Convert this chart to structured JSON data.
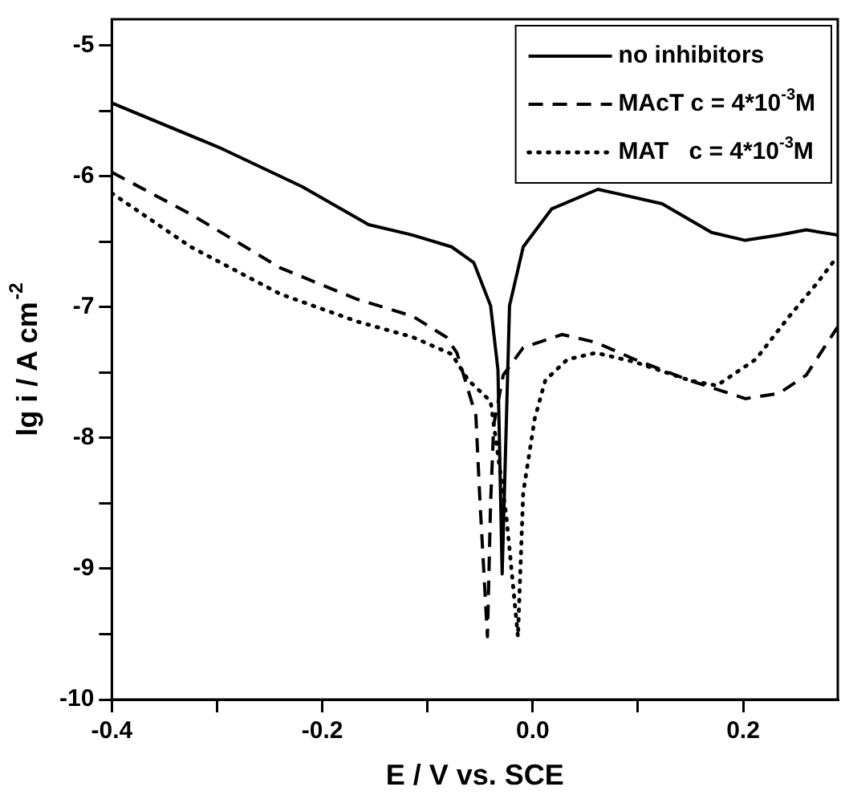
{
  "chart_data": {
    "type": "line",
    "xlabel": "E / V vs. SCE",
    "ylabel": "lg i / A cm$^{-2}$",
    "xlim": [
      -0.4,
      0.29
    ],
    "ylim": [
      -10,
      -4.8
    ],
    "xticks": [
      -0.4,
      {
        "value": -0.3,
        "label": null
      },
      -0.2,
      {
        "value": -0.1,
        "label": null
      },
      {
        "value": 0,
        "label": "0.0"
      },
      {
        "value": 0.1,
        "label": null
      },
      0.2
    ],
    "yticks": [
      -10,
      {
        "value": -9.5,
        "label": null
      },
      -9,
      {
        "value": -8.5,
        "label": null
      },
      -8,
      {
        "value": -7.5,
        "label": null
      },
      -7,
      {
        "value": -6.5,
        "label": null
      },
      -6,
      {
        "value": -5.5,
        "label": null
      },
      -5
    ],
    "grid": false,
    "legend": "top right",
    "series": [
      {
        "name": "no inhibitors",
        "color": "#000000",
        "line_style": "solid",
        "x": [
          -0.4,
          -0.298,
          -0.219,
          -0.156,
          -0.114,
          -0.077,
          -0.056,
          -0.04,
          -0.033,
          -0.029,
          -0.022,
          -0.009,
          0.018,
          0.062,
          0.123,
          0.17,
          0.202,
          0.234,
          0.26,
          0.29
        ],
        "values": [
          -5.44,
          -5.78,
          -6.08,
          -6.37,
          -6.45,
          -6.54,
          -6.66,
          -6.99,
          -7.48,
          -9.04,
          -6.99,
          -6.54,
          -6.25,
          -6.1,
          -6.21,
          -6.43,
          -6.49,
          -6.45,
          -6.41,
          -6.45
        ]
      },
      {
        "name": "MAcT c = 4*10$^{-3}$M",
        "color": "#000000",
        "line_style": "dashed",
        "x": [
          -0.4,
          -0.325,
          -0.24,
          -0.167,
          -0.114,
          -0.082,
          -0.072,
          -0.054,
          -0.05,
          -0.043,
          -0.04,
          -0.037,
          -0.028,
          -0.009,
          0.028,
          0.06,
          0.097,
          0.149,
          0.202,
          0.234,
          0.26,
          0.29
        ],
        "values": [
          -5.97,
          -6.29,
          -6.7,
          -6.94,
          -7.07,
          -7.23,
          -7.35,
          -7.83,
          -8.5,
          -9.52,
          -8.5,
          -7.9,
          -7.52,
          -7.31,
          -7.21,
          -7.27,
          -7.4,
          -7.56,
          -7.7,
          -7.66,
          -7.52,
          -7.15
        ]
      },
      {
        "name": "MAT   c = 4*10$^{-3}$M",
        "color": "#000000",
        "line_style": "dotted",
        "x": [
          -0.4,
          -0.325,
          -0.24,
          -0.167,
          -0.114,
          -0.077,
          -0.061,
          -0.04,
          -0.025,
          -0.014,
          -0.009,
          0.002,
          0.012,
          0.033,
          0.06,
          0.097,
          0.149,
          0.175,
          0.212,
          0.244,
          0.27,
          0.289
        ],
        "values": [
          -6.13,
          -6.54,
          -6.9,
          -7.11,
          -7.23,
          -7.36,
          -7.56,
          -7.72,
          -8.6,
          -9.52,
          -8.42,
          -7.85,
          -7.56,
          -7.4,
          -7.35,
          -7.42,
          -7.56,
          -7.6,
          -7.4,
          -7.07,
          -6.82,
          -6.62
        ]
      }
    ]
  }
}
